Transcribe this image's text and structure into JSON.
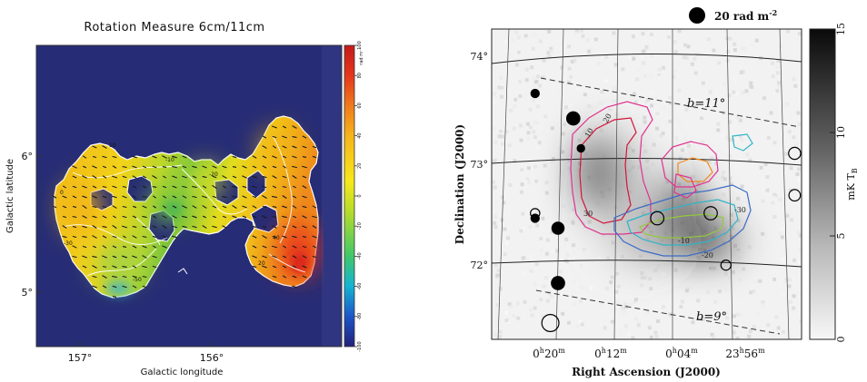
{
  "chart_data": [
    {
      "type": "heatmap",
      "title": "Rotation Measure 6cm/11cm",
      "xlabel": "Galactic longitude",
      "ylabel": "Galactic latitude",
      "x_ticks": [
        "157°",
        "156°"
      ],
      "y_ticks": [
        "6°",
        "5°"
      ],
      "xlim": [
        157.3,
        155.25
      ],
      "ylim": [
        4.65,
        6.5
      ],
      "colorbar": {
        "label": "rad m⁻²",
        "range": [
          -100,
          100
        ],
        "ticks": [
          "100",
          "80",
          "60",
          "40",
          "20",
          "0",
          "-20",
          "-40",
          "-60",
          "-80",
          "-100"
        ],
        "colors": [
          "#23207a",
          "#1c55c8",
          "#14b3d4",
          "#3fc86a",
          "#b7dc2a",
          "#f7e81a",
          "#f6b41a",
          "#f07a1c",
          "#e5361c",
          "#c41a1a"
        ]
      },
      "background_color": "#262c75",
      "contour_labels": [
        "10",
        "0",
        "-10",
        "-20",
        "-30",
        "20",
        "40",
        "-50"
      ]
    },
    {
      "type": "heatmap",
      "xlabel": "Right Ascension (J2000)",
      "ylabel": "Declination (J2000)",
      "x_ticks": [
        "0h20m",
        "0h12m",
        "0h04m",
        "23h56m"
      ],
      "y_ticks": [
        "74°",
        "73°",
        "72°"
      ],
      "colorbar": {
        "label": "mK T",
        "label_sub": "B",
        "range": [
          0,
          15
        ],
        "ticks": [
          "15",
          "10",
          "5",
          "0"
        ]
      },
      "legend": {
        "label": "20 rad m",
        "label_sup": "-2"
      },
      "annotations": [
        "b=11°",
        "b=9°"
      ],
      "contour_labels": [
        "10",
        "20",
        "30",
        "-20",
        "-30",
        "-10"
      ],
      "rm_circles": [
        {
          "ra": "0h22m",
          "dec": 73.7,
          "rm": 6,
          "sign": "positive"
        },
        {
          "ra": "0h17m",
          "dec": 73.45,
          "rm": 14,
          "sign": "positive"
        },
        {
          "ra": "0h16m",
          "dec": 73.15,
          "rm": 5,
          "sign": "positive"
        },
        {
          "ra": "0h22m",
          "dec": 72.45,
          "rm": 6,
          "sign": "positive"
        },
        {
          "ra": "0h19m",
          "dec": 72.35,
          "rm": 12,
          "sign": "positive"
        },
        {
          "ra": "0h19m",
          "dec": 71.8,
          "rm": 14,
          "sign": "positive"
        },
        {
          "ra": "0h20m",
          "dec": 71.4,
          "rm": 20,
          "sign": "negative"
        },
        {
          "ra": "0h06m",
          "dec": 72.45,
          "rm": 12,
          "sign": "negative"
        },
        {
          "ra": "23h59m",
          "dec": 72.5,
          "rm": 12,
          "sign": "negative"
        },
        {
          "ra": "23h57m",
          "dec": 71.98,
          "rm": 7,
          "sign": "negative"
        },
        {
          "ra": "23h48m",
          "dec": 73.1,
          "rm": 10,
          "sign": "negative"
        },
        {
          "ra": "23h48m",
          "dec": 72.68,
          "rm": 9,
          "sign": "negative"
        },
        {
          "ra": "0h22m",
          "dec": 72.5,
          "rm": 6,
          "sign": "negative"
        }
      ]
    }
  ]
}
